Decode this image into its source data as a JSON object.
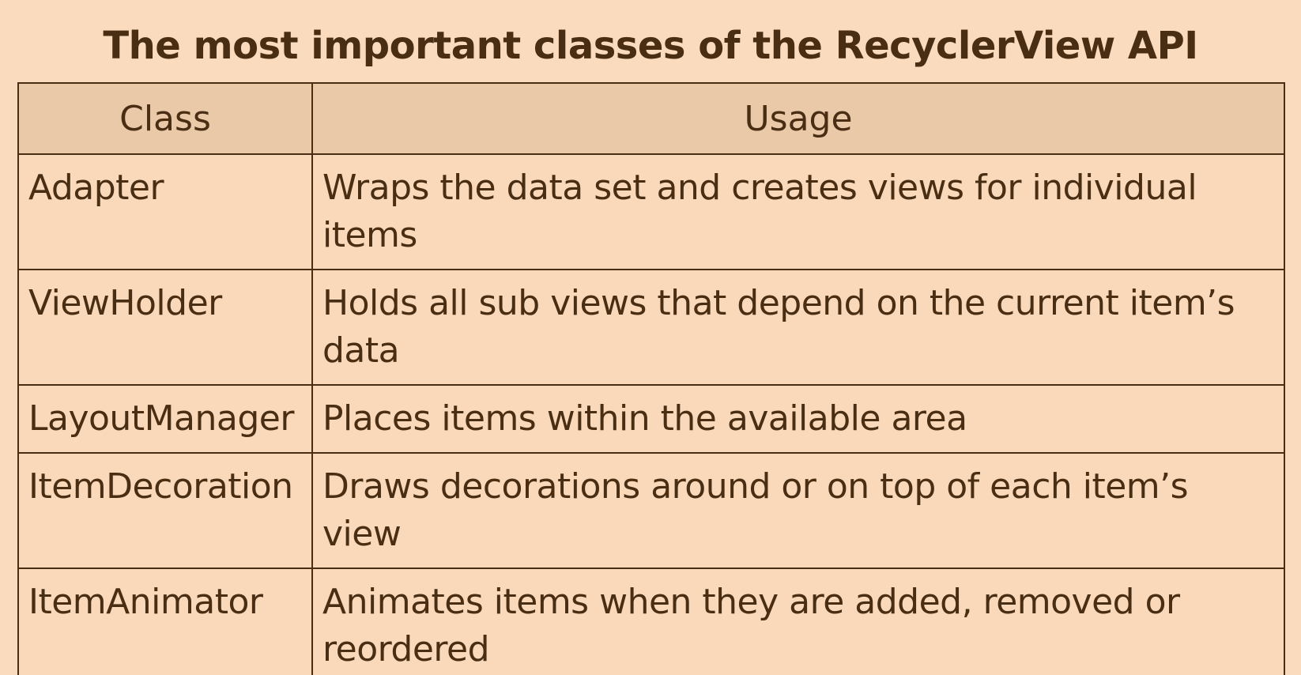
{
  "title": "The most important classes of the RecyclerView API",
  "table": {
    "headers": [
      "Class",
      "Usage"
    ],
    "rows": [
      {
        "class": "Adapter",
        "usage": "Wraps the data set and creates views for individual items"
      },
      {
        "class": "ViewHolder",
        "usage": "Holds all sub views that depend on the current item’s data"
      },
      {
        "class": "LayoutManager",
        "usage": "Places items within the available area"
      },
      {
        "class": "ItemDecoration",
        "usage": "Draws decorations around or on top of each item’s view"
      },
      {
        "class": "ItemAnimator",
        "usage": "Animates items when they are added, removed or reordered"
      }
    ]
  },
  "colors": {
    "background": "#fbdbbd",
    "header_background": "#eac9a8",
    "cell_background": "#f9d9b9",
    "text": "#4a2e14",
    "border": "#4a2e14"
  }
}
